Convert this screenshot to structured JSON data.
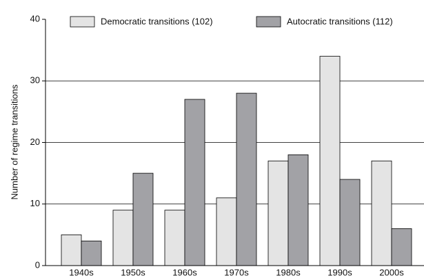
{
  "chart_data": {
    "type": "bar",
    "y_label": "Number of regime transitions",
    "categories": [
      "1940s",
      "1950s",
      "1960s",
      "1970s",
      "1980s",
      "1990s",
      "2000s"
    ],
    "series": [
      {
        "name": "Democratic transitions (102)",
        "color": "#e4e4e4",
        "values": [
          5,
          9,
          9,
          11,
          17,
          34,
          17
        ]
      },
      {
        "name": "Autocratic transitions (112)",
        "color": "#a2a2a6",
        "values": [
          4,
          15,
          27,
          28,
          18,
          14,
          6
        ]
      }
    ],
    "ylim": [
      0,
      40
    ],
    "yticks": [
      0,
      10,
      20,
      30,
      40
    ],
    "grid": true,
    "legend": "top"
  }
}
